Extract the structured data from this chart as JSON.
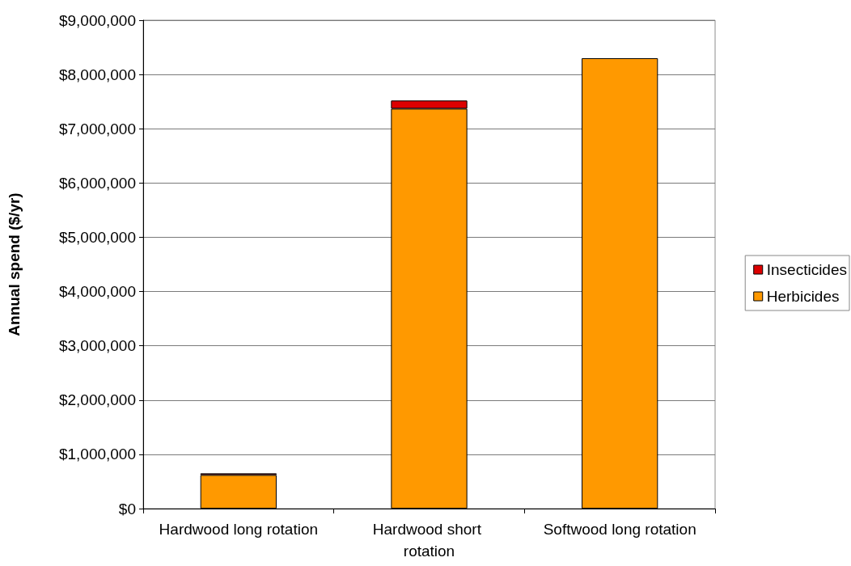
{
  "chart_data": {
    "type": "bar",
    "ylabel": "Annual spend ($/yr)",
    "categories": [
      "Hardwood long rotation",
      "Hardwood short rotation",
      "Softwood long rotation"
    ],
    "series": [
      {
        "name": "Herbicides",
        "color": "#ff9900",
        "values": [
          620000,
          7370000,
          8300000
        ]
      },
      {
        "name": "Insecticides",
        "color": "#dd0000",
        "values": [
          30000,
          150000,
          null
        ]
      }
    ],
    "stacked": true,
    "ylim": [
      0,
      9000000
    ],
    "yticks": [
      {
        "value": 0,
        "label": "$0"
      },
      {
        "value": 1000000,
        "label": "$1,000,000"
      },
      {
        "value": 2000000,
        "label": "$2,000,000"
      },
      {
        "value": 3000000,
        "label": "$3,000,000"
      },
      {
        "value": 4000000,
        "label": "$4,000,000"
      },
      {
        "value": 5000000,
        "label": "$5,000,000"
      },
      {
        "value": 6000000,
        "label": "$6,000,000"
      },
      {
        "value": 7000000,
        "label": "$7,000,000"
      },
      {
        "value": 8000000,
        "label": "$8,000,000"
      },
      {
        "value": 9000000,
        "label": "$9,000,000"
      }
    ],
    "grid": "y",
    "legend": "right"
  }
}
